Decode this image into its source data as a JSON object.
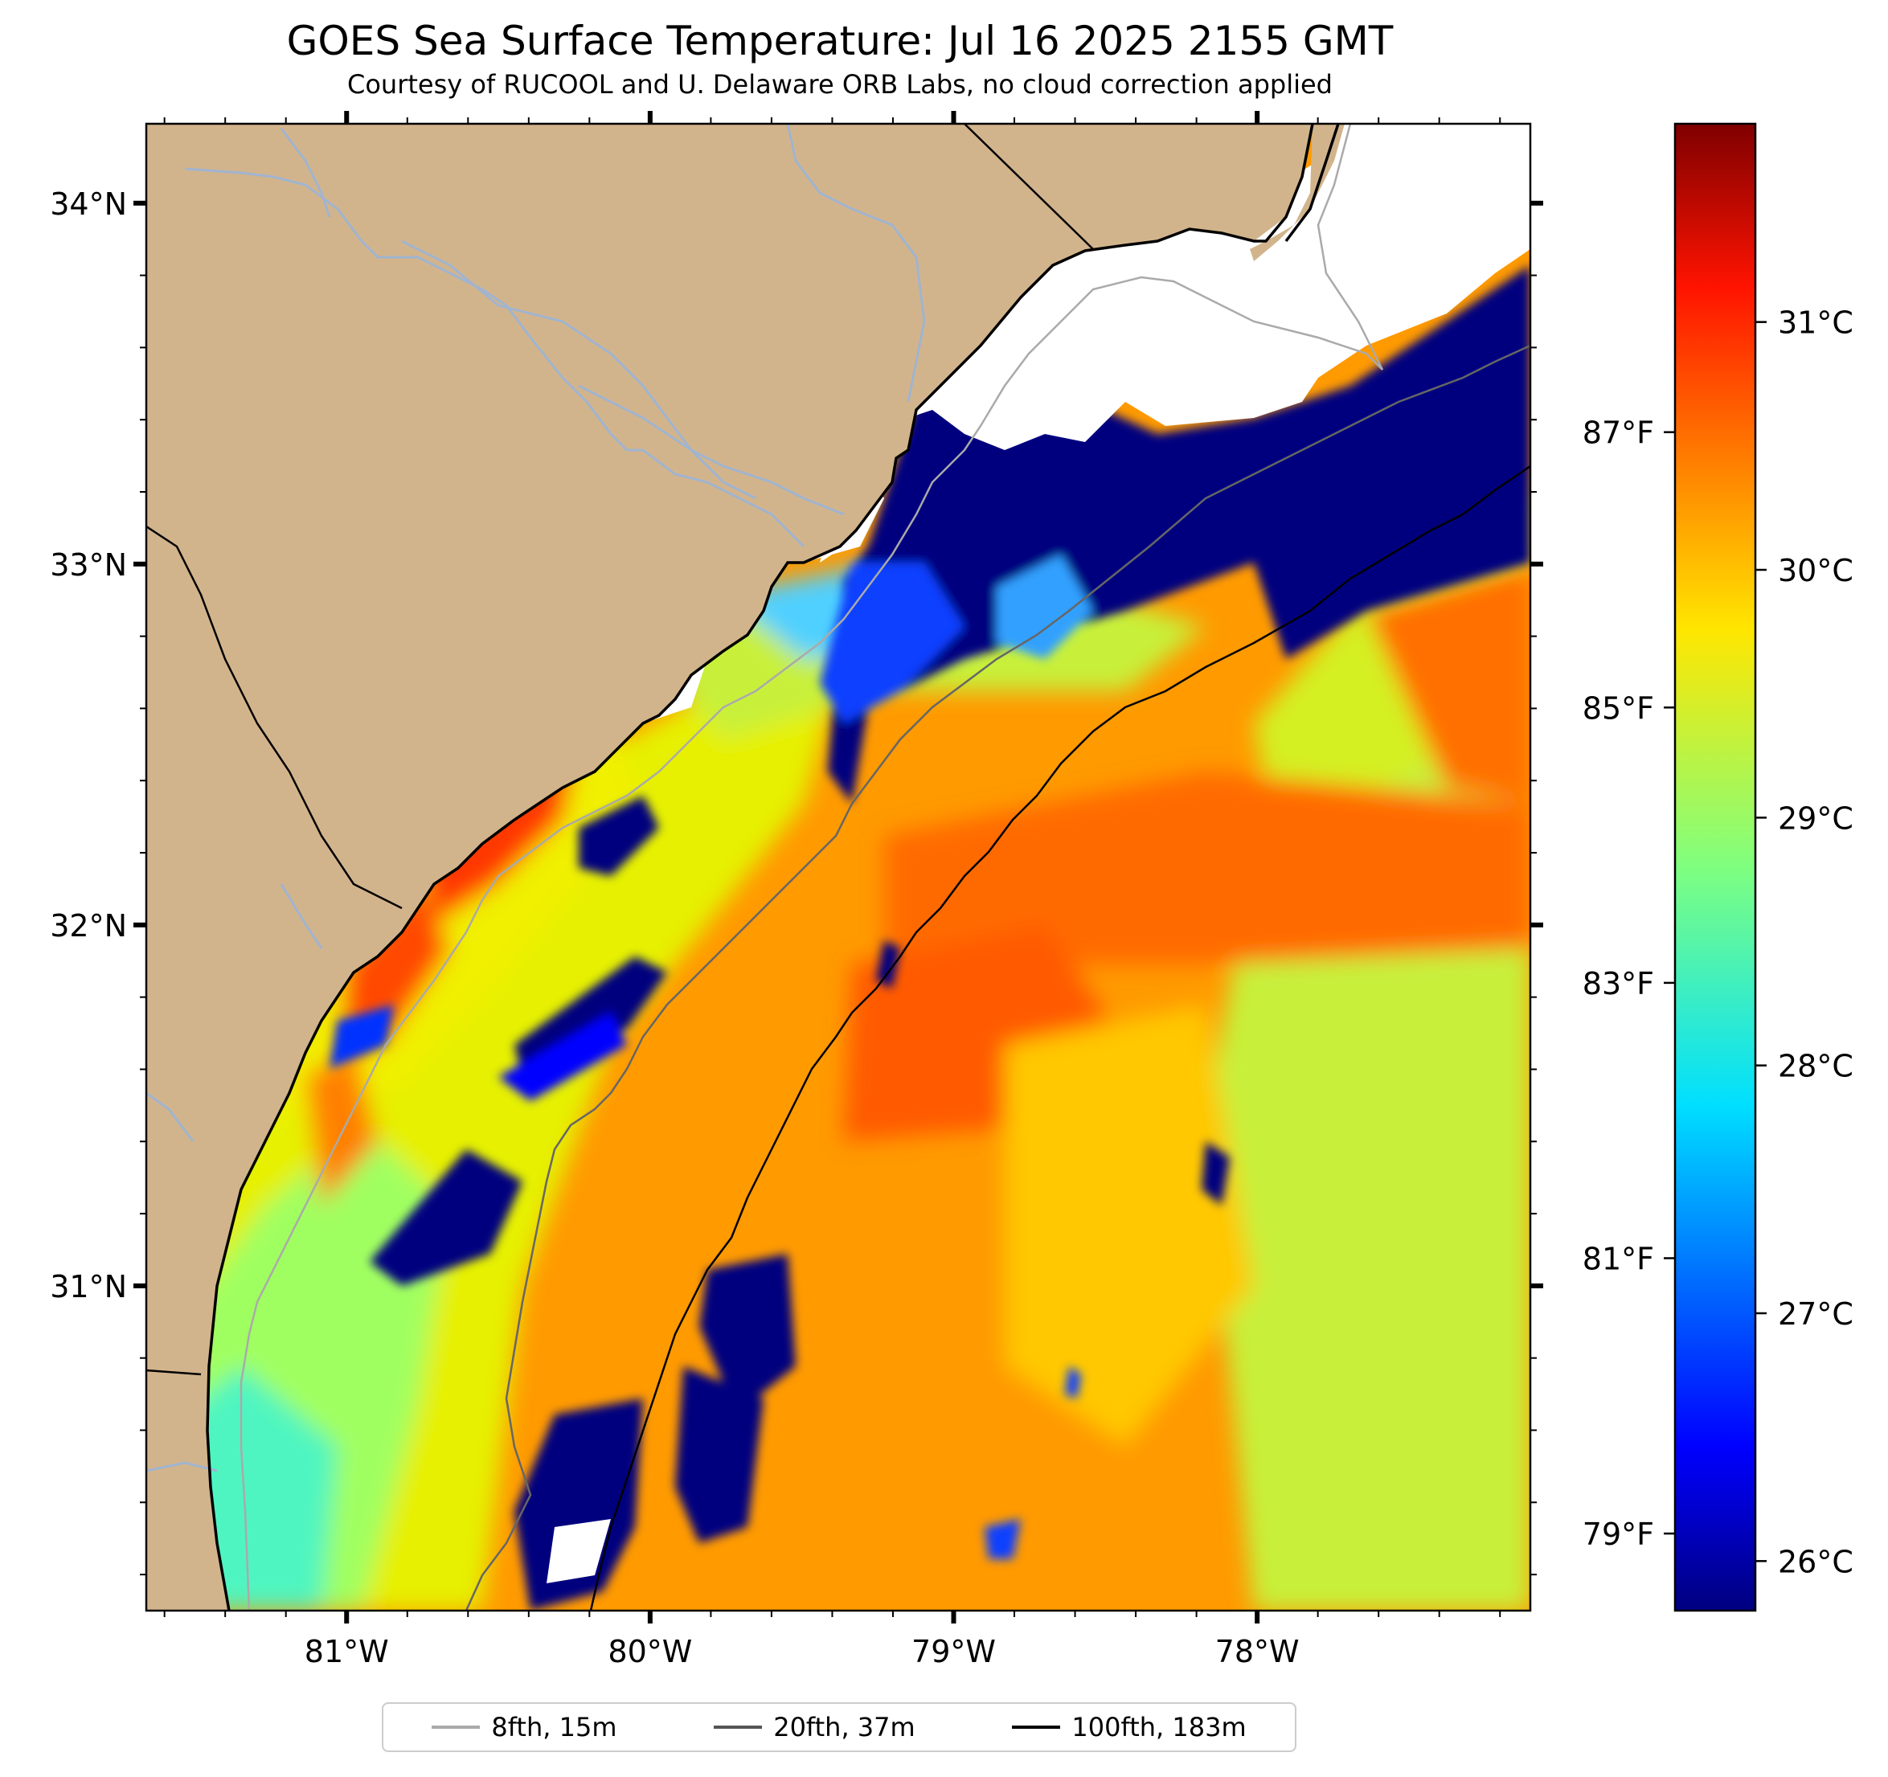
{
  "title": "GOES Sea Surface Temperature: Jul 16 2025 2155 GMT",
  "subtitle": "Courtesy of RUCOOL and U. Delaware ORB Labs, no cloud correction applied",
  "map": {
    "lon_range": [
      -81.66,
      -77.1
    ],
    "lat_range": [
      30.1,
      34.22
    ],
    "x_ticks": [
      {
        "value": -81,
        "label": "81°W"
      },
      {
        "value": -80,
        "label": "80°W"
      },
      {
        "value": -79,
        "label": "79°W"
      },
      {
        "value": -78,
        "label": "78°W"
      }
    ],
    "y_ticks": [
      {
        "value": 34,
        "label": "34°N"
      },
      {
        "value": 33,
        "label": "33°N"
      },
      {
        "value": 32,
        "label": "32°N"
      },
      {
        "value": 31,
        "label": "31°N"
      }
    ],
    "colors": {
      "land": "#d2b48c",
      "no_data": "#ffffff",
      "coastline": "#000000",
      "rivers": "#a0b4d0"
    }
  },
  "colorbar": {
    "colormap": "jet",
    "celsius_range": [
      25.8,
      31.8
    ],
    "celsius_ticks": [
      {
        "value": 26,
        "label": "26°C"
      },
      {
        "value": 27,
        "label": "27°C"
      },
      {
        "value": 28,
        "label": "28°C"
      },
      {
        "value": 29,
        "label": "29°C"
      },
      {
        "value": 30,
        "label": "30°C"
      },
      {
        "value": 31,
        "label": "31°C"
      }
    ],
    "fahrenheit_ticks": [
      {
        "value": 79,
        "label": "79°F"
      },
      {
        "value": 81,
        "label": "81°F"
      },
      {
        "value": 83,
        "label": "83°F"
      },
      {
        "value": 85,
        "label": "85°F"
      },
      {
        "value": 87,
        "label": "87°F"
      }
    ]
  },
  "legend": {
    "items": [
      {
        "label": "8fth, 15m",
        "color": "#aaaaaa"
      },
      {
        "label": "20fth, 37m",
        "color": "#555555"
      },
      {
        "label": "100fth, 183m",
        "color": "#000000"
      }
    ]
  }
}
